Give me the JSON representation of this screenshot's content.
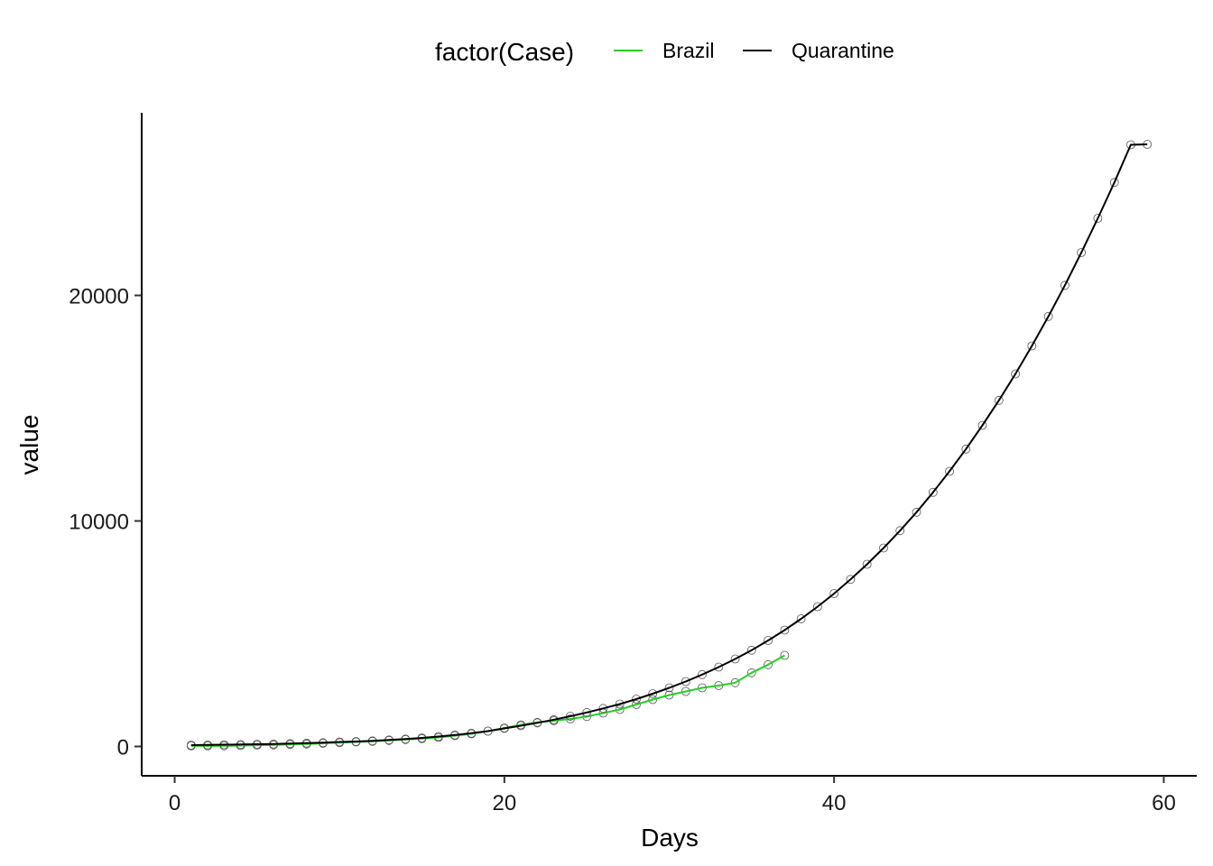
{
  "chart_data": {
    "type": "line",
    "title": "",
    "xlabel": "Days",
    "ylabel": "value",
    "xlim": [
      -2,
      62
    ],
    "ylim": [
      -1300,
      28100
    ],
    "x_ticks": [
      0,
      20,
      40,
      60
    ],
    "x_tick_labels": [
      "0",
      "20",
      "40",
      "60"
    ],
    "y_ticks": [
      0,
      10000,
      20000
    ],
    "y_tick_labels": [
      "0",
      "10000",
      "20000"
    ],
    "grid": false,
    "legend": {
      "title": "factor(Case)",
      "placement": "top",
      "entries": [
        "Brazil",
        "Quarantine"
      ]
    },
    "point_style": "open-circle",
    "series": [
      {
        "name": "Brazil",
        "color": "#22d022",
        "x": [
          1,
          2,
          3,
          4,
          5,
          6,
          7,
          8,
          9,
          10,
          11,
          12,
          13,
          14,
          15,
          16,
          17,
          18,
          19,
          20,
          21,
          22,
          23,
          24,
          25,
          26,
          27,
          28,
          29,
          30,
          31,
          32,
          33,
          34,
          35,
          36,
          37
        ],
        "values": [
          25,
          25,
          30,
          40,
          55,
          70,
          90,
          110,
          140,
          170,
          200,
          230,
          270,
          310,
          350,
          400,
          480,
          560,
          680,
          820,
          960,
          1070,
          1140,
          1220,
          1330,
          1480,
          1640,
          1860,
          2080,
          2280,
          2440,
          2600,
          2700,
          2830,
          3270,
          3630,
          4040
        ]
      },
      {
        "name": "Quarantine",
        "color": "#000000",
        "x": [
          1,
          2,
          3,
          4,
          5,
          6,
          7,
          8,
          9,
          10,
          11,
          12,
          13,
          14,
          15,
          16,
          17,
          18,
          19,
          20,
          21,
          22,
          23,
          24,
          25,
          26,
          27,
          28,
          29,
          30,
          31,
          32,
          33,
          34,
          35,
          36,
          37,
          38,
          39,
          40,
          41,
          42,
          43,
          44,
          45,
          46,
          47,
          48,
          49,
          50,
          51,
          52,
          53,
          54,
          55,
          56,
          57,
          58,
          59
        ],
        "values": [
          60,
          70,
          80,
          90,
          100,
          110,
          130,
          150,
          170,
          200,
          220,
          250,
          290,
          330,
          380,
          440,
          510,
          590,
          680,
          800,
          920,
          1050,
          1190,
          1340,
          1510,
          1690,
          1880,
          2100,
          2340,
          2600,
          2880,
          3190,
          3520,
          3880,
          4270,
          4700,
          5160,
          5660,
          6200,
          6780,
          7410,
          8080,
          8800,
          9570,
          10390,
          11270,
          12200,
          13190,
          14240,
          15350,
          16520,
          17760,
          19070,
          20450,
          21900,
          23420,
          25010,
          26680,
          26700
        ]
      }
    ]
  }
}
